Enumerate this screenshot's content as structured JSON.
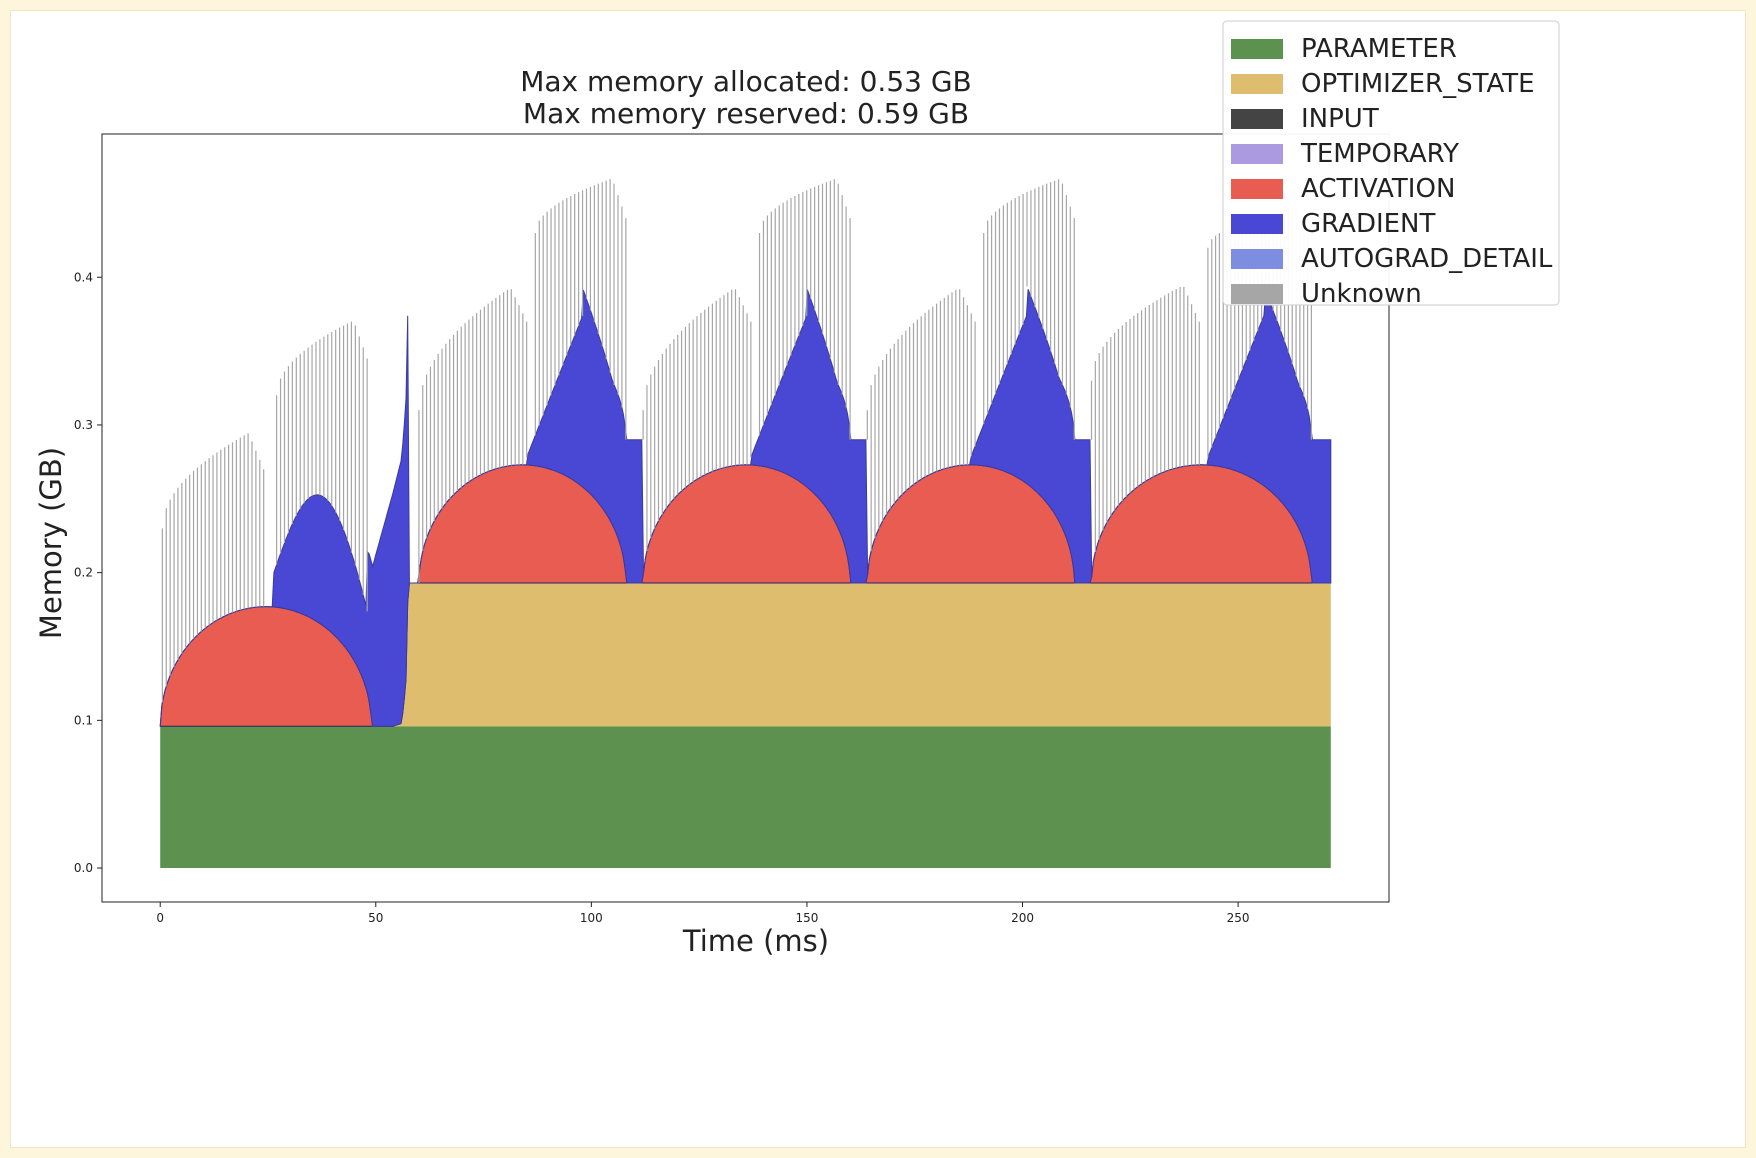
{
  "chart_data": {
    "type": "area",
    "title_lines": [
      "Max memory allocated: 0.53 GB",
      "Max memory reserved: 0.59 GB"
    ],
    "xlabel": "Time (ms)",
    "ylabel": "Memory (GB)",
    "xlim": [
      -13.5,
      285
    ],
    "ylim": [
      -0.023,
      0.497
    ],
    "xticks": [
      0,
      50,
      100,
      150,
      200,
      250
    ],
    "xtick_labels": [
      "0",
      "50",
      "100",
      "150",
      "200",
      "250"
    ],
    "yticks": [
      0.0,
      0.1,
      0.2,
      0.3,
      0.4
    ],
    "ytick_labels": [
      "0.0",
      "0.1",
      "0.2",
      "0.3",
      "0.4"
    ],
    "legend_position": "top-right",
    "legend": [
      {
        "name": "PARAMETER",
        "color": "#5d9150"
      },
      {
        "name": "OPTIMIZER_STATE",
        "color": "#dfbd6e"
      },
      {
        "name": "INPUT",
        "color": "#444444"
      },
      {
        "name": "TEMPORARY",
        "color": "#ab9ae0"
      },
      {
        "name": "ACTIVATION",
        "color": "#e85c52"
      },
      {
        "name": "GRADIENT",
        "color": "#4848d4"
      },
      {
        "name": "AUTOGRAD_DETAIL",
        "color": "#7d8ee0"
      },
      {
        "name": "Unknown",
        "color": "#a6a6a6"
      }
    ],
    "series": [
      {
        "name": "PARAMETER",
        "color": "#5d9150",
        "x": [
          0,
          271.5
        ],
        "y": [
          0.096,
          0.096
        ]
      },
      {
        "name": "OPTIMIZER_STATE",
        "color": "#dfbd6e",
        "x": [
          0,
          54,
          56,
          57,
          57.5,
          271.5
        ],
        "y": [
          0,
          0,
          0.002,
          0.03,
          0.097,
          0.097
        ]
      },
      {
        "name": "ACTIVATION",
        "color": "#e85c52",
        "x": [
          0,
          49,
          49.01,
          57,
          57.01,
          109,
          112,
          161,
          164,
          213,
          216,
          267,
          271.5
        ],
        "phases": [
          {
            "start": 0,
            "end": 49,
            "peak": 0.081
          },
          {
            "start": 60,
            "end": 108,
            "peak": 0.08
          },
          {
            "start": 112,
            "end": 160,
            "peak": 0.08
          },
          {
            "start": 164,
            "end": 212,
            "peak": 0.08
          },
          {
            "start": 216,
            "end": 267,
            "peak": 0.08
          }
        ]
      },
      {
        "name": "GRADIENT",
        "color": "#4848d4",
        "phases": [
          {
            "start": 26,
            "peak_at": 38,
            "peak": 0.05,
            "end_value": 0.1,
            "end": 57.5
          },
          {
            "start": 85,
            "peak_at": 98,
            "peak": 0.15,
            "end": 112
          },
          {
            "start": 137,
            "peak_at": 150,
            "peak": 0.15,
            "end": 164
          },
          {
            "start": 188,
            "peak_at": 201,
            "peak": 0.15,
            "end": 216
          },
          {
            "start": 243,
            "peak_at": 256,
            "peak": 0.15,
            "end": 271.5
          }
        ],
        "plateau": 0.097
      },
      {
        "name": "Unknown",
        "color": "#a6a6a6",
        "spikes": [
          {
            "start": 0.5,
            "end": 24,
            "from": 0.23,
            "to": 0.3
          },
          {
            "start": 27,
            "end": 48,
            "from": 0.32,
            "to": 0.375
          },
          {
            "start": 60,
            "end": 85,
            "from": 0.31,
            "to": 0.4
          },
          {
            "start": 87,
            "end": 108,
            "from": 0.43,
            "to": 0.47
          },
          {
            "start": 112,
            "end": 137,
            "from": 0.31,
            "to": 0.4
          },
          {
            "start": 139,
            "end": 160,
            "from": 0.43,
            "to": 0.47
          },
          {
            "start": 164,
            "end": 189,
            "from": 0.31,
            "to": 0.4
          },
          {
            "start": 191,
            "end": 212,
            "from": 0.43,
            "to": 0.47
          },
          {
            "start": 216,
            "end": 241,
            "from": 0.33,
            "to": 0.4
          },
          {
            "start": 243,
            "end": 267,
            "from": 0.42,
            "to": 0.45
          }
        ]
      }
    ]
  }
}
